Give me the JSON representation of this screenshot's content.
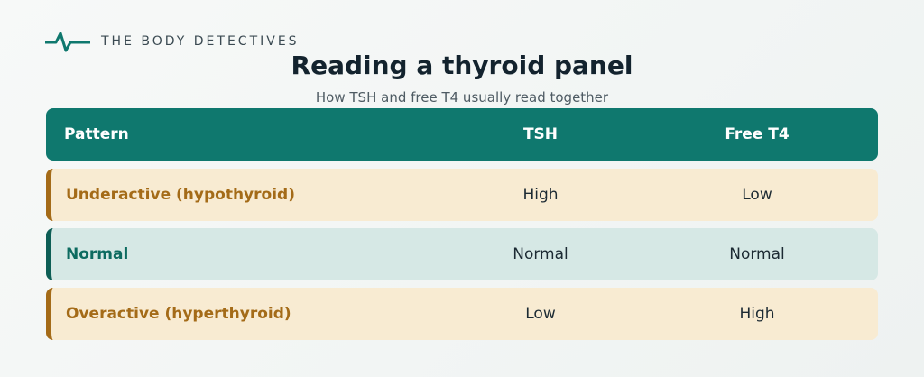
{
  "header": {
    "brand": "THE BODY DETECTIVES",
    "title": "Reading a thyroid panel",
    "subtitle": "How TSH and free T4 usually read together"
  },
  "table": {
    "columns": [
      "Pattern",
      "TSH",
      "Free T4"
    ],
    "rows": [
      [
        "Underactive (hypothyroid)",
        "High",
        "Low"
      ],
      [
        "Normal",
        "Normal",
        "Normal"
      ],
      [
        "Overactive (hyperthyroid)",
        "Low",
        "High"
      ]
    ]
  }
}
